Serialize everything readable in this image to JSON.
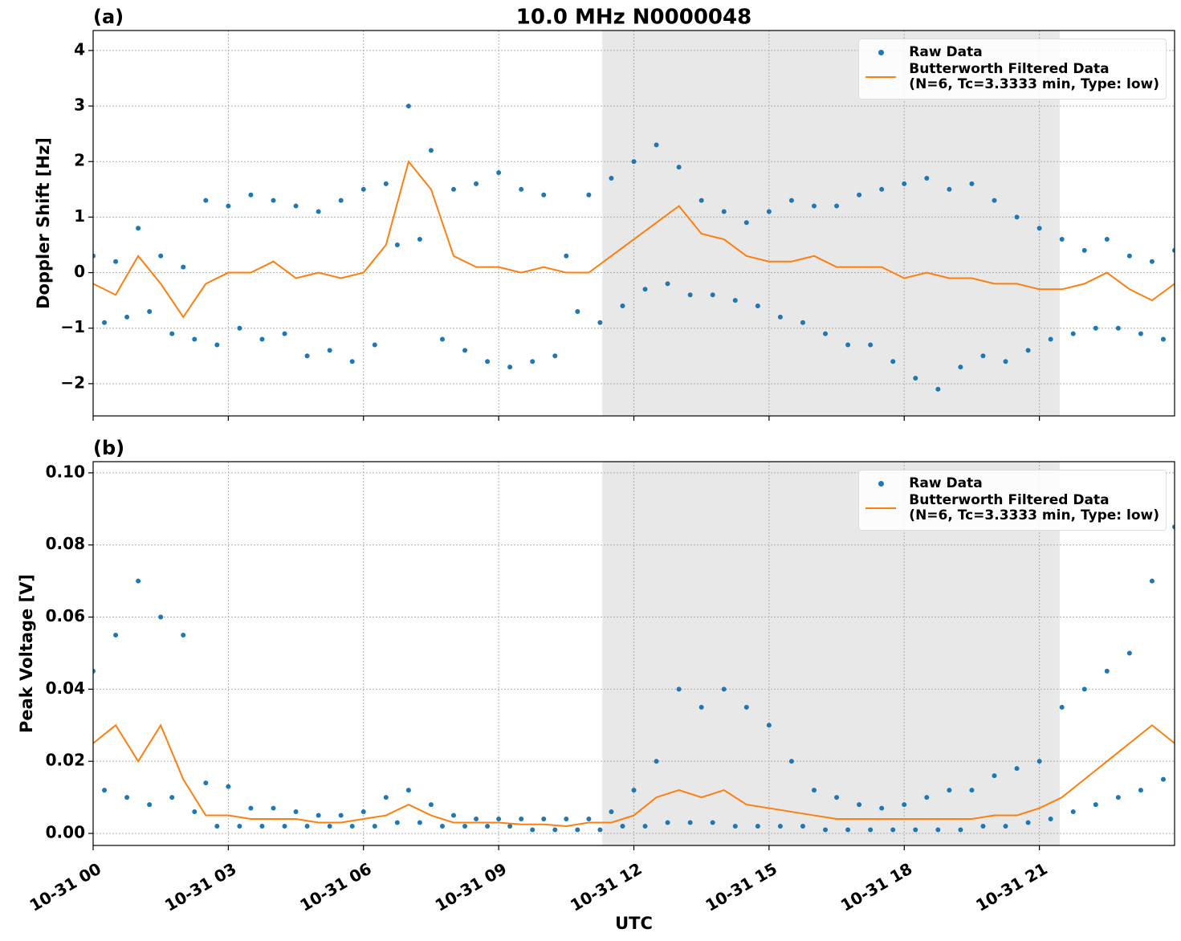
{
  "chart_data": [
    {
      "type": "line",
      "title": "10.0 MHz N0000048",
      "panel_label": "(a)",
      "ylabel": "Doppler Shift [Hz]",
      "xlim": [
        0,
        24
      ],
      "xticks": [
        0,
        3,
        6,
        9,
        12,
        15,
        18,
        21
      ],
      "ylim": [
        -2.58,
        4.36
      ],
      "yticks": [
        {
          "value": -2,
          "label": "−2"
        },
        {
          "value": -1,
          "label": "−1"
        },
        0,
        1,
        2,
        3,
        4
      ],
      "grid": true,
      "shaded_span": [
        11.3,
        21.45
      ],
      "shade_color": "#e8e8e8",
      "legend": "upper right",
      "series": [
        {
          "name": "Raw Data",
          "color": "#1f77b4",
          "mode": "markers",
          "x": [
            0,
            0.25,
            0.5,
            0.75,
            1,
            1.25,
            1.5,
            1.75,
            2,
            2.25,
            2.5,
            2.75,
            3,
            3.25,
            3.5,
            3.75,
            4,
            4.25,
            4.5,
            4.75,
            5,
            5.25,
            5.5,
            5.75,
            6,
            6.25,
            6.5,
            6.75,
            7,
            7.25,
            7.5,
            7.75,
            8,
            8.25,
            8.5,
            8.75,
            9,
            9.25,
            9.5,
            9.75,
            10,
            10.25,
            10.5,
            10.75,
            11,
            11.25,
            11.5,
            11.75,
            12,
            12.25,
            12.5,
            12.75,
            13,
            13.25,
            13.5,
            13.75,
            14,
            14.25,
            14.5,
            14.75,
            15,
            15.25,
            15.5,
            15.75,
            16,
            16.25,
            16.5,
            16.75,
            17,
            17.25,
            17.5,
            17.75,
            18,
            18.25,
            18.5,
            18.75,
            19,
            19.25,
            19.5,
            19.75,
            20,
            20.25,
            20.5,
            20.75,
            21,
            21.25,
            21.5,
            21.75,
            22,
            22.25,
            22.5,
            22.75,
            23,
            23.25,
            23.5,
            23.75,
            24
          ],
          "values": [
            0.3,
            -0.9,
            0.2,
            -0.8,
            0.8,
            -0.7,
            0.3,
            -1.1,
            0.1,
            -1.2,
            1.3,
            -1.3,
            1.2,
            -1.0,
            1.4,
            -1.2,
            1.3,
            -1.1,
            1.2,
            -1.5,
            1.1,
            -1.4,
            1.3,
            -1.6,
            1.5,
            -1.3,
            1.6,
            0.5,
            3.0,
            0.6,
            2.2,
            -1.2,
            1.5,
            -1.4,
            1.6,
            -1.6,
            1.8,
            -1.7,
            1.5,
            -1.6,
            1.4,
            -1.5,
            0.3,
            -0.7,
            1.4,
            -0.9,
            1.7,
            -0.6,
            2.0,
            -0.3,
            2.3,
            -0.2,
            1.9,
            -0.4,
            1.3,
            -0.4,
            1.1,
            -0.5,
            0.9,
            -0.6,
            1.1,
            -0.8,
            1.3,
            -0.9,
            1.2,
            -1.1,
            1.2,
            -1.3,
            1.4,
            -1.3,
            1.5,
            -1.6,
            1.6,
            -1.9,
            1.7,
            -2.1,
            1.5,
            -1.7,
            1.6,
            -1.5,
            1.3,
            -1.6,
            1.0,
            -1.4,
            0.8,
            -1.2,
            0.6,
            -1.1,
            0.4,
            -1.0,
            0.6,
            -1.0,
            0.3,
            -1.1,
            0.2,
            -1.2,
            0.4
          ]
        },
        {
          "name": "Butterworth Filtered Data\n(N=6, Tc=3.3333 min, Type: low)",
          "color": "#ff7f0e",
          "mode": "line",
          "x": [
            0,
            0.5,
            1,
            1.5,
            2,
            2.5,
            3,
            3.5,
            4,
            4.5,
            5,
            5.5,
            6,
            6.5,
            7,
            7.5,
            8,
            8.5,
            9,
            9.5,
            10,
            10.5,
            11,
            11.5,
            12,
            12.5,
            13,
            13.5,
            14,
            14.5,
            15,
            15.5,
            16,
            16.5,
            17,
            17.5,
            18,
            18.5,
            19,
            19.5,
            20,
            20.5,
            21,
            21.5,
            22,
            22.5,
            23,
            23.5,
            24
          ],
          "values": [
            -0.2,
            -0.4,
            0.3,
            -0.2,
            -0.8,
            -0.2,
            0.0,
            0.0,
            0.2,
            -0.1,
            0.0,
            -0.1,
            0.0,
            0.5,
            2.0,
            1.5,
            0.3,
            0.1,
            0.1,
            0.0,
            0.1,
            0.0,
            0.0,
            0.3,
            0.6,
            0.9,
            1.2,
            0.7,
            0.6,
            0.3,
            0.2,
            0.2,
            0.3,
            0.1,
            0.1,
            0.1,
            -0.1,
            0.0,
            -0.1,
            -0.1,
            -0.2,
            -0.2,
            -0.3,
            -0.3,
            -0.2,
            0.0,
            -0.3,
            -0.5,
            -0.2
          ]
        }
      ]
    },
    {
      "type": "line",
      "panel_label": "(b)",
      "ylabel": "Peak Voltage [V]",
      "xlabel": "UTC",
      "xlim": [
        0,
        24
      ],
      "xticks": [
        {
          "value": 0,
          "label": "10-31 00"
        },
        {
          "value": 3,
          "label": "10-31 03"
        },
        {
          "value": 6,
          "label": "10-31 06"
        },
        {
          "value": 9,
          "label": "10-31 09"
        },
        {
          "value": 12,
          "label": "10-31 12"
        },
        {
          "value": 15,
          "label": "10-31 15"
        },
        {
          "value": 18,
          "label": "10-31 18"
        },
        {
          "value": 21,
          "label": "10-31 21"
        }
      ],
      "ylim": [
        -0.00334,
        0.1031
      ],
      "yticks": [
        {
          "value": 0,
          "label": "0.00"
        },
        0.02,
        0.04,
        0.06,
        0.08,
        {
          "value": 0.1,
          "label": "0.10"
        }
      ],
      "grid": true,
      "shaded_span": [
        11.3,
        21.45
      ],
      "shade_color": "#e8e8e8",
      "legend": "upper right",
      "series": [
        {
          "name": "Raw Data",
          "color": "#1f77b4",
          "mode": "markers",
          "x": [
            0,
            0.25,
            0.5,
            0.75,
            1,
            1.25,
            1.5,
            1.75,
            2,
            2.25,
            2.5,
            2.75,
            3,
            3.25,
            3.5,
            3.75,
            4,
            4.25,
            4.5,
            4.75,
            5,
            5.25,
            5.5,
            5.75,
            6,
            6.25,
            6.5,
            6.75,
            7,
            7.25,
            7.5,
            7.75,
            8,
            8.25,
            8.5,
            8.75,
            9,
            9.25,
            9.5,
            9.75,
            10,
            10.25,
            10.5,
            10.75,
            11,
            11.25,
            11.5,
            11.75,
            12,
            12.25,
            12.5,
            12.75,
            13,
            13.25,
            13.5,
            13.75,
            14,
            14.25,
            14.5,
            14.75,
            15,
            15.25,
            15.5,
            15.75,
            16,
            16.25,
            16.5,
            16.75,
            17,
            17.25,
            17.5,
            17.75,
            18,
            18.25,
            18.5,
            18.75,
            19,
            19.25,
            19.5,
            19.75,
            20,
            20.25,
            20.5,
            20.75,
            21,
            21.25,
            21.5,
            21.75,
            22,
            22.25,
            22.5,
            22.75,
            23,
            23.25,
            23.5,
            23.75,
            24
          ],
          "values": [
            0.045,
            0.012,
            0.055,
            0.01,
            0.07,
            0.008,
            0.06,
            0.01,
            0.055,
            0.006,
            0.014,
            0.002,
            0.013,
            0.002,
            0.007,
            0.002,
            0.007,
            0.002,
            0.006,
            0.002,
            0.005,
            0.002,
            0.005,
            0.002,
            0.006,
            0.002,
            0.01,
            0.003,
            0.012,
            0.003,
            0.008,
            0.002,
            0.005,
            0.002,
            0.004,
            0.002,
            0.004,
            0.002,
            0.004,
            0.001,
            0.004,
            0.001,
            0.004,
            0.001,
            0.004,
            0.001,
            0.006,
            0.002,
            0.012,
            0.002,
            0.02,
            0.003,
            0.04,
            0.003,
            0.035,
            0.003,
            0.04,
            0.002,
            0.035,
            0.002,
            0.03,
            0.002,
            0.02,
            0.002,
            0.012,
            0.001,
            0.01,
            0.001,
            0.008,
            0.001,
            0.007,
            0.001,
            0.008,
            0.001,
            0.01,
            0.001,
            0.012,
            0.001,
            0.012,
            0.002,
            0.016,
            0.002,
            0.018,
            0.003,
            0.02,
            0.004,
            0.035,
            0.006,
            0.04,
            0.008,
            0.045,
            0.01,
            0.05,
            0.012,
            0.07,
            0.015,
            0.085
          ]
        },
        {
          "name": "Butterworth Filtered Data\n(N=6, Tc=3.3333 min, Type: low)",
          "color": "#ff7f0e",
          "mode": "line",
          "x": [
            0,
            0.5,
            1,
            1.5,
            2,
            2.5,
            3,
            3.5,
            4,
            4.5,
            5,
            5.5,
            6,
            6.5,
            7,
            7.5,
            8,
            8.5,
            9,
            9.5,
            10,
            10.5,
            11,
            11.5,
            12,
            12.5,
            13,
            13.5,
            14,
            14.5,
            15,
            15.5,
            16,
            16.5,
            17,
            17.5,
            18,
            18.5,
            19,
            19.5,
            20,
            20.5,
            21,
            21.5,
            22,
            22.5,
            23,
            23.5,
            24
          ],
          "values": [
            0.025,
            0.03,
            0.02,
            0.03,
            0.015,
            0.005,
            0.005,
            0.004,
            0.004,
            0.004,
            0.003,
            0.003,
            0.004,
            0.005,
            0.008,
            0.005,
            0.003,
            0.003,
            0.003,
            0.0025,
            0.0025,
            0.002,
            0.003,
            0.003,
            0.005,
            0.01,
            0.012,
            0.01,
            0.012,
            0.008,
            0.007,
            0.006,
            0.005,
            0.004,
            0.004,
            0.004,
            0.004,
            0.004,
            0.004,
            0.004,
            0.005,
            0.005,
            0.007,
            0.01,
            0.015,
            0.02,
            0.025,
            0.03,
            0.025
          ]
        }
      ]
    }
  ]
}
